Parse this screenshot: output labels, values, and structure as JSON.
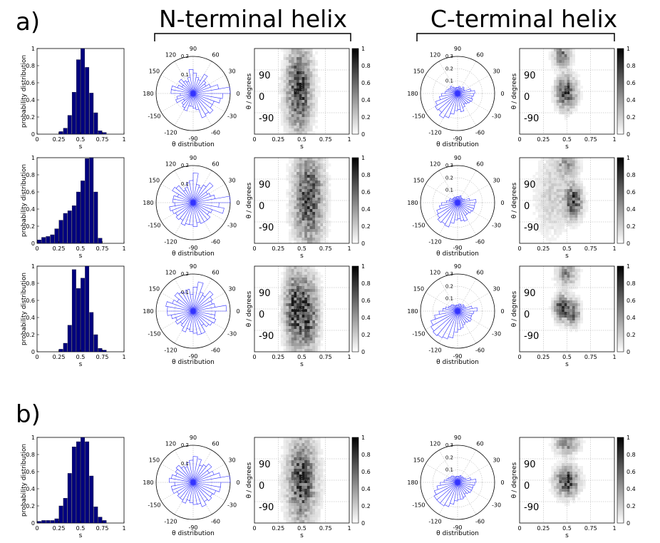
{
  "figure": {
    "panel_a_label": "a)",
    "panel_b_label": "b)",
    "n_terminal_title": "N-terminal helix",
    "c_terminal_title": "C-terminal helix"
  },
  "labels": {
    "hist_ylabel": "probability distribution",
    "hist_xlabel": "s",
    "polar_xlabel": "θ distribution",
    "heat_ylabel": "θ / degrees",
    "heat_xlabel": "s"
  },
  "ticks": {
    "hist_x": [
      "0",
      "0.25",
      "0.5",
      "0.75",
      "1"
    ],
    "hist_y": [
      "0",
      "0.2",
      "0.4",
      "0.6",
      "0.8",
      "1"
    ],
    "polar_angles": [
      "90",
      "60",
      "30",
      "0",
      "-30",
      "-60",
      "-90",
      "-120",
      "-150",
      "180",
      "150",
      "120"
    ],
    "heat_x": [
      "0",
      "0.25",
      "0.5",
      "0.75",
      "1"
    ],
    "heat_y": [
      "90",
      "0",
      "-90"
    ],
    "colorbar": [
      "1",
      "0.8",
      "0.6",
      "0.4",
      "0.2",
      "0"
    ]
  },
  "colors": {
    "bar": "#00007f",
    "rose": "#3333ff",
    "axis": "#000000",
    "grid": "#aaaaaa"
  },
  "chart_data": [
    {
      "row": "a1",
      "histogram": {
        "type": "bar",
        "x": [
          0.025,
          0.075,
          0.125,
          0.175,
          0.225,
          0.275,
          0.325,
          0.375,
          0.425,
          0.475,
          0.525,
          0.575,
          0.625,
          0.675,
          0.725,
          0.775,
          0.825,
          0.875,
          0.925,
          0.975
        ],
        "values": [
          0,
          0,
          0,
          0,
          0,
          0.03,
          0.07,
          0.22,
          0.49,
          0.87,
          1.0,
          0.78,
          0.48,
          0.25,
          0.04,
          0.02,
          0,
          0,
          0,
          0
        ],
        "xlim": [
          0,
          1
        ],
        "ylim": [
          0,
          1
        ],
        "xlabel": "s",
        "ylabel": "probability distribution"
      },
      "n_polar": {
        "type": "polar-rose",
        "rings": [
          0.1,
          0.2
        ],
        "ring_labels": [
          "0.1",
          "0.2"
        ],
        "values": [
          0.27,
          0.14,
          0.1,
          0.08,
          0.09,
          0.12,
          0.08,
          0.09,
          0.11,
          0.13,
          0.09,
          0.07,
          0.08,
          0.1,
          0.07,
          0.09,
          0.12,
          0.12,
          0.07,
          0.09,
          0.1,
          0.06,
          0.08,
          0.09,
          0.1,
          0.07,
          0.07,
          0.08,
          0.09,
          0.14,
          0.13,
          0.14,
          0.12,
          0.12,
          0.15,
          0.16
        ],
        "xlabel": "θ distribution"
      },
      "n_heatmap": {
        "type": "heatmap",
        "xlim": [
          0,
          1
        ],
        "ylim": [
          -180,
          180
        ],
        "peaks": [
          {
            "s": 0.47,
            "theta": 10,
            "ws": 0.09,
            "wt": 120,
            "amp": 1.0
          }
        ],
        "xlabel": "s",
        "ylabel": "θ / degrees"
      },
      "c_polar": {
        "type": "polar-rose",
        "rings": [
          0.1,
          0.2,
          0.3
        ],
        "ring_labels": [
          "0.1",
          "0.2",
          "0.3"
        ],
        "values": [
          0.14,
          0.11,
          0.06,
          0.06,
          0.07,
          0.05,
          0.05,
          0.06,
          0.05,
          0.05,
          0.05,
          0.05,
          0.06,
          0.08,
          0.07,
          0.08,
          0.09,
          0.1,
          0.13,
          0.15,
          0.19,
          0.21,
          0.2,
          0.23,
          0.21,
          0.17,
          0.14,
          0.13,
          0.15,
          0.12,
          0.1,
          0.11,
          0.12,
          0.13,
          0.12,
          0.13
        ],
        "xlabel": "θ distribution"
      },
      "c_heatmap": {
        "type": "heatmap",
        "xlim": [
          0,
          1
        ],
        "ylim": [
          -180,
          180
        ],
        "peaks": [
          {
            "s": 0.49,
            "theta": -5,
            "ws": 0.07,
            "wt": 45,
            "amp": 1.0
          },
          {
            "s": 0.45,
            "theta": 150,
            "ws": 0.06,
            "wt": 30,
            "amp": 0.7
          }
        ],
        "xlabel": "s",
        "ylabel": "θ / degrees"
      }
    },
    {
      "row": "a2",
      "histogram": {
        "type": "bar",
        "x": [
          0.025,
          0.075,
          0.125,
          0.175,
          0.225,
          0.275,
          0.325,
          0.375,
          0.425,
          0.475,
          0.525,
          0.575,
          0.625,
          0.675,
          0.725,
          0.775,
          0.825,
          0.875,
          0.925,
          0.975
        ],
        "values": [
          0.04,
          0.07,
          0.08,
          0.1,
          0.17,
          0.27,
          0.35,
          0.38,
          0.44,
          0.6,
          0.73,
          0.99,
          1.0,
          0.6,
          0.06,
          0,
          0,
          0,
          0,
          0
        ],
        "xlim": [
          0,
          1
        ],
        "ylim": [
          0,
          1
        ],
        "xlabel": "s",
        "ylabel": "probability distribution"
      },
      "n_polar": {
        "type": "polar-rose",
        "rings": [
          0.1,
          0.2
        ],
        "ring_labels": [
          "0.1",
          "0.2"
        ],
        "values": [
          0.21,
          0.12,
          0.1,
          0.09,
          0.14,
          0.11,
          0.09,
          0.1,
          0.16,
          0.12,
          0.11,
          0.09,
          0.08,
          0.12,
          0.13,
          0.09,
          0.11,
          0.11,
          0.1,
          0.13,
          0.12,
          0.11,
          0.12,
          0.11,
          0.13,
          0.12,
          0.12,
          0.13,
          0.11,
          0.12,
          0.12,
          0.12,
          0.1,
          0.11,
          0.17,
          0.14
        ],
        "xlabel": "θ distribution"
      },
      "n_heatmap": {
        "type": "heatmap",
        "xlim": [
          0,
          1
        ],
        "ylim": [
          -180,
          180
        ],
        "peaks": [
          {
            "s": 0.57,
            "theta": 10,
            "ws": 0.1,
            "wt": 130,
            "amp": 1.0
          }
        ],
        "xlabel": "s",
        "ylabel": "θ / degrees"
      },
      "c_polar": {
        "type": "polar-rose",
        "rings": [
          0.1,
          0.2,
          0.3
        ],
        "ring_labels": [
          "0.1",
          "0.2",
          "0.3"
        ],
        "values": [
          0.15,
          0.1,
          0.06,
          0.05,
          0.05,
          0.05,
          0.06,
          0.05,
          0.05,
          0.05,
          0.04,
          0.05,
          0.05,
          0.05,
          0.05,
          0.07,
          0.07,
          0.09,
          0.13,
          0.15,
          0.18,
          0.19,
          0.21,
          0.2,
          0.21,
          0.17,
          0.14,
          0.13,
          0.15,
          0.16,
          0.12,
          0.12,
          0.13,
          0.14,
          0.14,
          0.14
        ],
        "xlabel": "θ distribution"
      },
      "c_heatmap": {
        "type": "heatmap",
        "xlim": [
          0,
          1
        ],
        "ylim": [
          -180,
          180
        ],
        "peaks": [
          {
            "s": 0.57,
            "theta": -5,
            "ws": 0.06,
            "wt": 45,
            "amp": 1.0
          },
          {
            "s": 0.5,
            "theta": 150,
            "ws": 0.08,
            "wt": 35,
            "amp": 0.45
          },
          {
            "s": 0.35,
            "theta": 20,
            "ws": 0.12,
            "wt": 110,
            "amp": 0.25
          }
        ],
        "xlabel": "s",
        "ylabel": "θ / degrees"
      }
    },
    {
      "row": "a3",
      "histogram": {
        "type": "bar",
        "x": [
          0.025,
          0.075,
          0.125,
          0.175,
          0.225,
          0.275,
          0.325,
          0.375,
          0.425,
          0.475,
          0.525,
          0.575,
          0.625,
          0.675,
          0.725,
          0.775,
          0.825,
          0.875,
          0.925,
          0.975
        ],
        "values": [
          0,
          0,
          0,
          0,
          0,
          0.03,
          0.1,
          0.31,
          0.96,
          0.74,
          0.86,
          1.0,
          0.46,
          0.2,
          0.04,
          0.02,
          0,
          0,
          0,
          0
        ],
        "xlim": [
          0,
          1
        ],
        "ylim": [
          0,
          1
        ],
        "xlabel": "s",
        "ylabel": "probability distribution"
      },
      "n_polar": {
        "type": "polar-rose",
        "rings": [
          0.1,
          0.2
        ],
        "ring_labels": [
          "0.1",
          "0.2"
        ],
        "values": [
          0.18,
          0.12,
          0.11,
          0.12,
          0.14,
          0.1,
          0.11,
          0.16,
          0.13,
          0.09,
          0.12,
          0.11,
          0.12,
          0.13,
          0.1,
          0.12,
          0.15,
          0.14,
          0.14,
          0.12,
          0.1,
          0.11,
          0.09,
          0.1,
          0.12,
          0.1,
          0.11,
          0.12,
          0.13,
          0.13,
          0.09,
          0.11,
          0.12,
          0.13,
          0.12,
          0.12
        ],
        "xlabel": "θ distribution"
      },
      "n_heatmap": {
        "type": "heatmap",
        "xlim": [
          0,
          1
        ],
        "ylim": [
          -180,
          180
        ],
        "peaks": [
          {
            "s": 0.42,
            "theta": 0,
            "ws": 0.07,
            "wt": 110,
            "amp": 0.9
          },
          {
            "s": 0.57,
            "theta": -20,
            "ws": 0.07,
            "wt": 110,
            "amp": 0.85
          }
        ],
        "xlabel": "s",
        "ylabel": "θ / degrees"
      },
      "c_polar": {
        "type": "polar-rose",
        "rings": [
          0.1,
          0.2,
          0.3
        ],
        "ring_labels": [
          "0.1",
          "0.2",
          "0.3"
        ],
        "values": [
          0.16,
          0.12,
          0.07,
          0.06,
          0.07,
          0.05,
          0.06,
          0.06,
          0.05,
          0.05,
          0.05,
          0.05,
          0.06,
          0.07,
          0.07,
          0.08,
          0.1,
          0.12,
          0.15,
          0.19,
          0.23,
          0.25,
          0.26,
          0.25,
          0.24,
          0.22,
          0.17,
          0.15,
          0.14,
          0.12,
          0.11,
          0.12,
          0.13,
          0.12,
          0.12,
          0.13
        ],
        "xlabel": "θ distribution"
      },
      "c_heatmap": {
        "type": "heatmap",
        "xlim": [
          0,
          1
        ],
        "ylim": [
          -180,
          180
        ],
        "peaks": [
          {
            "s": 0.44,
            "theta": 5,
            "ws": 0.05,
            "wt": 35,
            "amp": 0.95
          },
          {
            "s": 0.56,
            "theta": -15,
            "ws": 0.05,
            "wt": 35,
            "amp": 0.85
          },
          {
            "s": 0.5,
            "theta": 150,
            "ws": 0.07,
            "wt": 35,
            "amp": 0.6
          }
        ],
        "xlabel": "s",
        "ylabel": "θ / degrees"
      }
    },
    {
      "row": "b",
      "histogram": {
        "type": "bar",
        "x": [
          0.025,
          0.075,
          0.125,
          0.175,
          0.225,
          0.275,
          0.325,
          0.375,
          0.425,
          0.475,
          0.525,
          0.575,
          0.625,
          0.675,
          0.725,
          0.775,
          0.825,
          0.875,
          0.925,
          0.975
        ],
        "values": [
          0.02,
          0.03,
          0.03,
          0.03,
          0.05,
          0.2,
          0.29,
          0.58,
          0.89,
          0.95,
          1.0,
          0.95,
          0.55,
          0.19,
          0.07,
          0.03,
          0,
          0,
          0,
          0
        ],
        "xlim": [
          0,
          1
        ],
        "ylim": [
          0,
          1
        ],
        "xlabel": "s",
        "ylabel": "probability distribution"
      },
      "n_polar": {
        "type": "polar-rose",
        "rings": [
          0.1,
          0.2
        ],
        "ring_labels": [
          "0.1",
          "0.2"
        ],
        "values": [
          0.24,
          0.15,
          0.12,
          0.1,
          0.13,
          0.11,
          0.1,
          0.13,
          0.14,
          0.12,
          0.11,
          0.09,
          0.1,
          0.12,
          0.11,
          0.1,
          0.12,
          0.13,
          0.1,
          0.12,
          0.12,
          0.1,
          0.11,
          0.11,
          0.12,
          0.1,
          0.11,
          0.12,
          0.12,
          0.14,
          0.12,
          0.13,
          0.12,
          0.13,
          0.15,
          0.15
        ],
        "xlabel": "θ distribution"
      },
      "n_heatmap": {
        "type": "heatmap",
        "xlim": [
          0,
          1
        ],
        "ylim": [
          -180,
          180
        ],
        "peaks": [
          {
            "s": 0.5,
            "theta": 0,
            "ws": 0.1,
            "wt": 120,
            "amp": 1.0
          }
        ],
        "xlabel": "s",
        "ylabel": "θ / degrees"
      },
      "c_polar": {
        "type": "polar-rose",
        "rings": [
          0.1,
          0.2,
          0.3
        ],
        "ring_labels": [
          "0.1",
          "0.2",
          "0.3"
        ],
        "values": [
          0.15,
          0.11,
          0.07,
          0.06,
          0.06,
          0.05,
          0.06,
          0.05,
          0.05,
          0.05,
          0.05,
          0.05,
          0.06,
          0.07,
          0.07,
          0.08,
          0.09,
          0.11,
          0.14,
          0.17,
          0.2,
          0.22,
          0.22,
          0.22,
          0.21,
          0.18,
          0.15,
          0.14,
          0.14,
          0.13,
          0.11,
          0.12,
          0.13,
          0.13,
          0.13,
          0.14
        ],
        "xlabel": "θ distribution"
      },
      "c_heatmap": {
        "type": "heatmap",
        "xlim": [
          0,
          1
        ],
        "ylim": [
          -180,
          180
        ],
        "peaks": [
          {
            "s": 0.5,
            "theta": -5,
            "ws": 0.08,
            "wt": 40,
            "amp": 1.0
          },
          {
            "s": 0.5,
            "theta": 155,
            "ws": 0.08,
            "wt": 30,
            "amp": 0.65
          }
        ],
        "xlabel": "s",
        "ylabel": "θ / degrees"
      }
    }
  ]
}
